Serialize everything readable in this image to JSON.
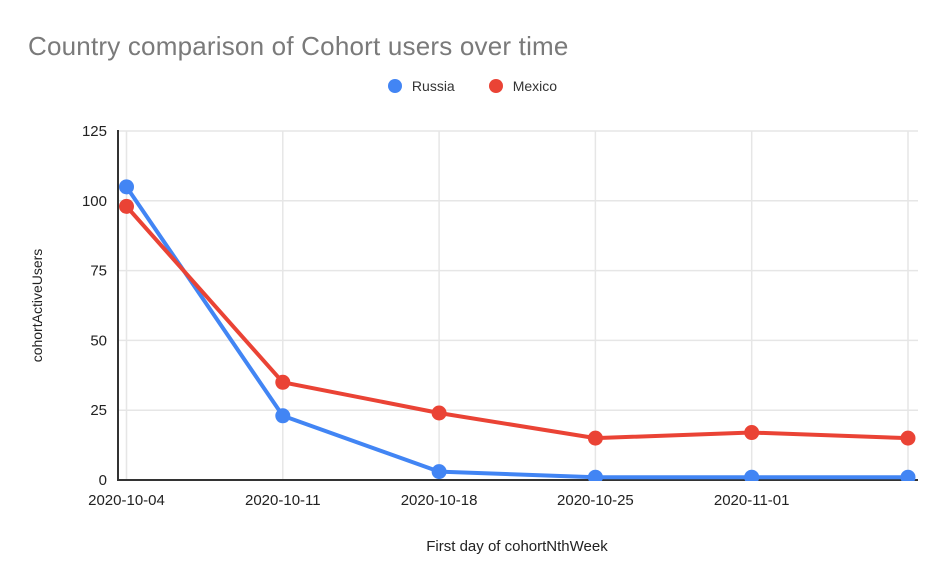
{
  "page": {
    "background": "#ffffff"
  },
  "chart_data": {
    "type": "line",
    "title": "Country comparison of Cohort users over time",
    "xlabel": "First day of cohortNthWeek",
    "ylabel": "cohortActiveUsers",
    "categories": [
      "2020-10-04",
      "2020-10-11",
      "2020-10-18",
      "2020-10-25",
      "2020-11-01",
      ""
    ],
    "x_tick_labels": [
      "2020-10-04",
      "2020-10-11",
      "2020-10-18",
      "2020-10-25",
      "2020-11-01"
    ],
    "y_ticks": [
      0,
      25,
      50,
      75,
      100,
      125
    ],
    "ylim": [
      0,
      125
    ],
    "grid": true,
    "legend_position": "top",
    "series": [
      {
        "name": "Russia",
        "color": "#4285F4",
        "values": [
          105,
          23,
          3,
          1,
          1,
          1
        ]
      },
      {
        "name": "Mexico",
        "color": "#EA4335",
        "values": [
          98,
          35,
          24,
          15,
          17,
          15
        ]
      }
    ]
  },
  "colors": {
    "title_text": "#7a7a7a",
    "axis_line": "#333333",
    "tick_label": "#222222",
    "axis_title": "#222222",
    "gridline": "#e6e6e6",
    "legend_text": "#333333",
    "russia_blue": "#4285F4",
    "mexico_red": "#EA4335"
  }
}
